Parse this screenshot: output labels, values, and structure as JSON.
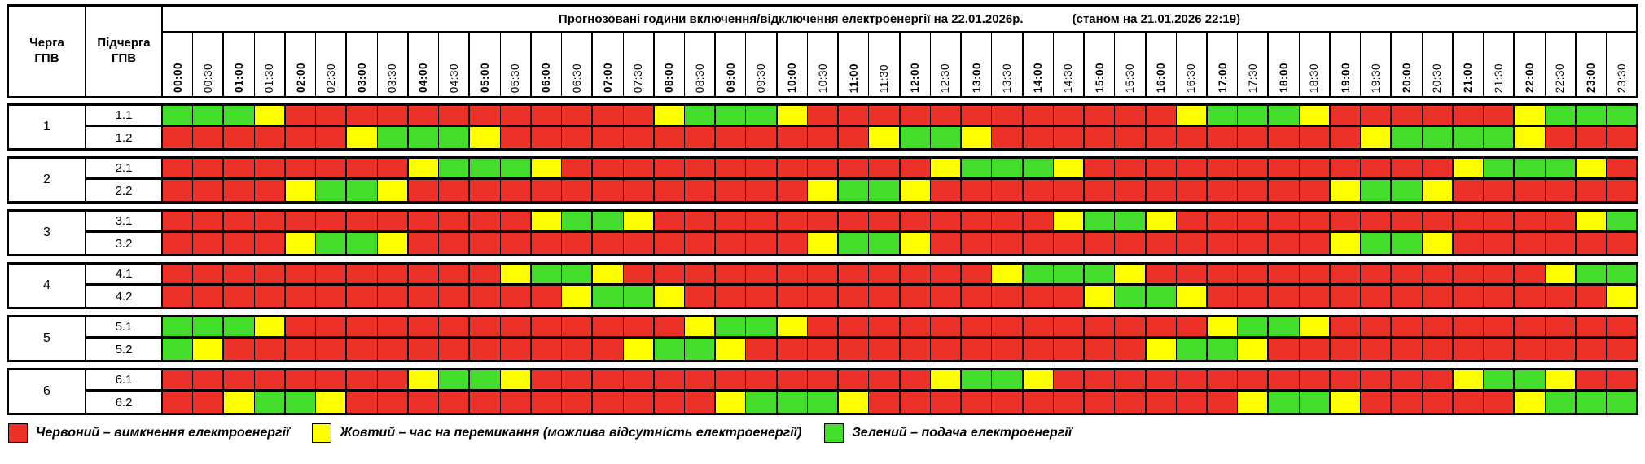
{
  "header": {
    "title": "Прогнозовані години включення/відключення електроенергії на 22.01.2026р.",
    "as_of": "(станом на 21.01.2026 22:19)",
    "queue_col": "Черга\nГПВ",
    "subqueue_col": "Підчерга\nГПВ"
  },
  "times": [
    "00:00",
    "00:30",
    "01:00",
    "01:30",
    "02:00",
    "02:30",
    "03:00",
    "03:30",
    "04:00",
    "04:30",
    "05:00",
    "05:30",
    "06:00",
    "06:30",
    "07:00",
    "07:30",
    "08:00",
    "08:30",
    "09:00",
    "09:30",
    "10:00",
    "10:30",
    "11:00",
    "11:30",
    "12:00",
    "12:30",
    "13:00",
    "13:30",
    "14:00",
    "14:30",
    "15:00",
    "15:30",
    "16:00",
    "16:30",
    "17:00",
    "17:30",
    "18:00",
    "18:30",
    "19:00",
    "19:30",
    "20:00",
    "20:30",
    "21:00",
    "21:30",
    "22:00",
    "22:30",
    "23:00",
    "23:30"
  ],
  "colors": {
    "R": "#ec3128",
    "Y": "#ffff00",
    "G": "#45dd2b"
  },
  "groups": [
    {
      "queue": "1",
      "rows": [
        {
          "label": "1.1",
          "cells": "GGGYRRRRRRRRRRRRYGGGYRRRRRRRRRRRRYGGGYRRRRRRYGGG"
        },
        {
          "label": "1.2",
          "cells": "RRRRRRYGGGYRRRRRRRRRRRRYGGYRRRRRRRRRRRRYGGGGYRRR"
        }
      ]
    },
    {
      "queue": "2",
      "rows": [
        {
          "label": "2.1",
          "cells": "RRRRRRRRYGGGYRRRRRRRRRRRRYGGGYRRRRRRRRRRRRYGGGYR"
        },
        {
          "label": "2.2",
          "cells": "RRRRYGGYRRRRRRRRRRRRRYGGYRRRRRRRRRRRRRYGGYRRRRRR"
        }
      ]
    },
    {
      "queue": "3",
      "rows": [
        {
          "label": "3.1",
          "cells": "RRRRRRRRRRRRYGGYRRRRRRRRRRRRRYGGYRRRRRRRRRRRRRYG"
        },
        {
          "label": "3.2",
          "cells": "RRRRYGGYRRRRRRRRRRRRRYGGYRRRRRRRRRRRRRYGGYRRRRRR"
        }
      ]
    },
    {
      "queue": "4",
      "rows": [
        {
          "label": "4.1",
          "cells": "RRRRRRRRRRRYGGYRRRRRRRRRRRRYGGGYRRRRRRRRRRRRRYGG"
        },
        {
          "label": "4.2",
          "cells": "RRRRRRRRRRRRRYGGYRRRRRRRRRRRRRYGGYRRRRRRRRRRRRRY"
        }
      ]
    },
    {
      "queue": "5",
      "rows": [
        {
          "label": "5.1",
          "cells": "GGGYRRRRRRRRRRRRRYGGYRRRRRRRRRRRRRYGGYRRRRRRRRRR"
        },
        {
          "label": "5.2",
          "cells": "GYRRRRRRRRRRRRRYGGYRRRRRRRRRRRRRYGGYRRRRRRRRRRRR"
        }
      ]
    },
    {
      "queue": "6",
      "rows": [
        {
          "label": "6.1",
          "cells": "RRRRRRRRYGGYRRRRRRRRRRRRRYGGYRRRRRRRRRRRRRYGGYRR"
        },
        {
          "label": "6.2",
          "cells": "RRYGGYRRRRRRRRRRRRYGGGYRRRRRRRRRRRRYGGYRRRRRYGGG"
        }
      ]
    }
  ],
  "legend": [
    {
      "key": "R",
      "color": "#ec3128",
      "label": "Червоний – вимкнення електроенергії"
    },
    {
      "key": "Y",
      "color": "#ffff00",
      "label": "Жовтий – час на перемикання (можлива відсутність електроенергії)"
    },
    {
      "key": "G",
      "color": "#45dd2b",
      "label": "Зелений – подача електроенергії"
    }
  ]
}
